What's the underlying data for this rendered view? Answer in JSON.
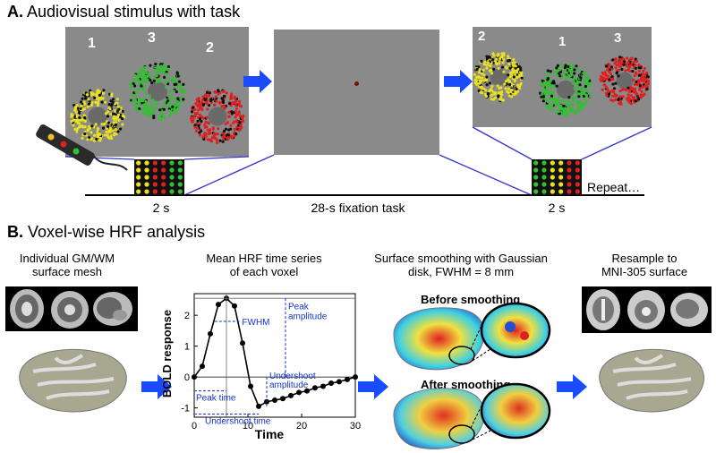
{
  "sectionA": {
    "letter": "A.",
    "title": "Audiovisual stimulus with task",
    "panel1_numbers": [
      "1",
      "3",
      "2"
    ],
    "panel3_numbers": [
      "2",
      "1",
      "3"
    ],
    "timeline": {
      "label_left": "2 s",
      "label_middle": "28-s fixation task",
      "label_right": "2 s",
      "repeat": "Repeat…"
    },
    "colors": {
      "yellow": "#e8e020",
      "green": "#30c030",
      "red": "#e02020",
      "arrow": "#1a4cff",
      "line": "#3333cc"
    }
  },
  "sectionB": {
    "letter": "B.",
    "title": "Voxel-wise HRF analysis",
    "steps": [
      {
        "title_line1": "Individual GM/WM",
        "title_line2": "surface mesh"
      },
      {
        "title_line1": "Mean HRF time series",
        "title_line2": "of each voxel"
      },
      {
        "title_line1": "Surface smoothing with Gaussian",
        "title_line2": "disk, FWHM = 8 mm"
      },
      {
        "title_line1": "Resample to",
        "title_line2": "MNI-305 surface"
      }
    ],
    "smoothing": {
      "before": "Before smoothing",
      "after": "After smoothing"
    },
    "hrf_annotations": {
      "peak_amplitude": [
        "Peak",
        "amplitude"
      ],
      "fwhm": "FWHM",
      "undershoot_amplitude": [
        "Undershoot",
        "amplitude"
      ],
      "peak_time": "Peak time",
      "undershoot_time": "Undershoot time"
    }
  },
  "chart_data": {
    "type": "line",
    "xlabel": "Time",
    "ylabel": "BOLD response",
    "xlim": [
      0,
      30
    ],
    "ylim": [
      -1.3,
      2.7
    ],
    "xticks": [
      0,
      10,
      20,
      30
    ],
    "yticks": [
      -1,
      0,
      1,
      2
    ],
    "grid": false,
    "x": [
      0,
      1.5,
      3,
      4.5,
      6,
      7.5,
      9,
      10.5,
      12,
      13.5,
      15,
      16.5,
      18,
      19.5,
      21,
      22.5,
      24,
      25.5,
      27,
      28.5,
      30
    ],
    "y": [
      0,
      0.35,
      1.4,
      2.35,
      2.55,
      2.3,
      1.1,
      -0.3,
      -0.95,
      -0.8,
      -0.75,
      -0.7,
      -0.6,
      -0.5,
      -0.45,
      -0.35,
      -0.3,
      -0.2,
      -0.15,
      -0.08,
      0
    ]
  }
}
